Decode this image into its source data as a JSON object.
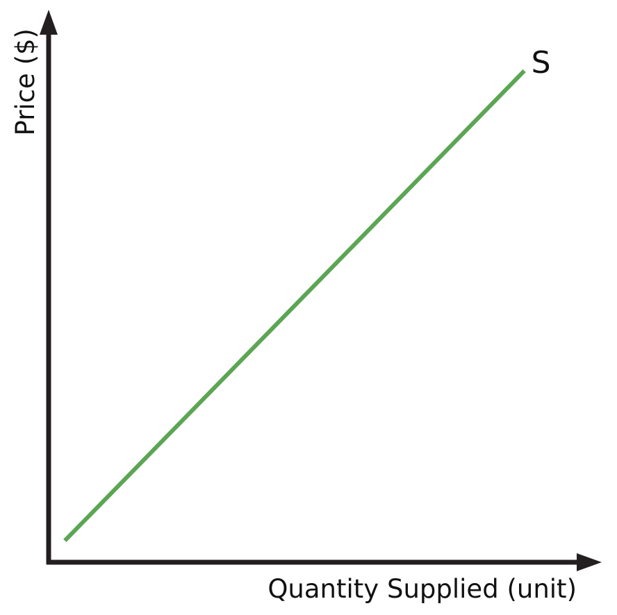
{
  "chart_data": {
    "type": "line",
    "title": "",
    "xlabel": "Quantity Supplied (unit)",
    "ylabel": "Price ($)",
    "xlim": [
      0,
      100
    ],
    "ylim": [
      0,
      100
    ],
    "grid": false,
    "ticks": false,
    "series": [
      {
        "name": "S",
        "color": "#5ca554",
        "x": [
          3,
          88
        ],
        "y": [
          4,
          91
        ]
      }
    ],
    "colors": {
      "axis": "#231f20",
      "text": "#111111"
    }
  }
}
